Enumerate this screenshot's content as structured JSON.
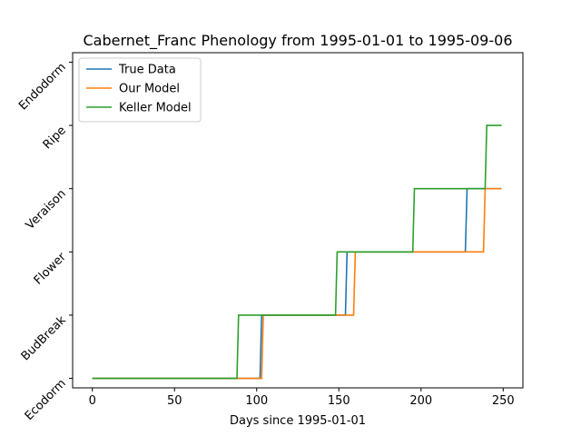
{
  "chart_data": {
    "type": "line",
    "title": "Cabernet_Franc Phenology from 1995-01-01 to 1995-09-06",
    "xlabel": "Days since 1995-01-01",
    "ylabel": "",
    "xlim": [
      -12,
      262
    ],
    "ylim": [
      -0.15,
      5.15
    ],
    "x_ticks": [
      0,
      50,
      100,
      150,
      200,
      250
    ],
    "y_ticks": [
      0,
      1,
      2,
      3,
      4,
      5
    ],
    "y_tick_labels": [
      "Ecodorm",
      "BudBreak",
      "Flower",
      "Veraison",
      "Ripe",
      "Endodorm"
    ],
    "legend_position": "upper left",
    "series": [
      {
        "name": "True Data",
        "color": "#1f77b4",
        "x": [
          0,
          102,
          103,
          154,
          155,
          227,
          228,
          249
        ],
        "y": [
          0,
          0,
          1,
          1,
          2,
          2,
          3,
          3
        ]
      },
      {
        "name": "Our Model",
        "color": "#ff7f0e",
        "x": [
          0,
          103,
          104,
          159,
          160,
          238,
          239,
          249
        ],
        "y": [
          0,
          0,
          1,
          1,
          2,
          2,
          3,
          3
        ]
      },
      {
        "name": "Keller Model",
        "color": "#2ca02c",
        "x": [
          0,
          88,
          89,
          148,
          149,
          195,
          196,
          239,
          240,
          249
        ],
        "y": [
          0,
          0,
          1,
          1,
          2,
          2,
          3,
          3,
          4,
          4
        ]
      }
    ]
  }
}
